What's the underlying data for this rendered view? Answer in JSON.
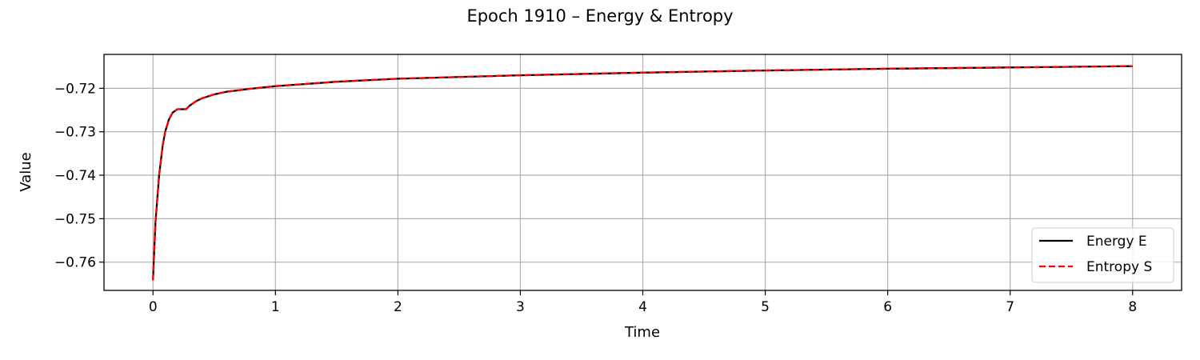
{
  "chart_data": {
    "type": "line",
    "title": "Epoch 1910 – Energy & Entropy",
    "xlabel": "Time",
    "ylabel": "Value",
    "xlim": [
      -0.4,
      8.4
    ],
    "ylim": [
      -0.7665,
      -0.7122
    ],
    "xticks": [
      0,
      1,
      2,
      3,
      4,
      5,
      6,
      7,
      8
    ],
    "xtick_labels": [
      "0",
      "1",
      "2",
      "3",
      "4",
      "5",
      "6",
      "7",
      "8"
    ],
    "yticks": [
      -0.76,
      -0.75,
      -0.74,
      -0.73,
      -0.72
    ],
    "ytick_labels": [
      "−0.76",
      "−0.75",
      "−0.74",
      "−0.73",
      "−0.72"
    ],
    "grid": true,
    "legend_position": "lower-right",
    "series": [
      {
        "name": "Energy E",
        "color": "#000000",
        "style": "solid",
        "x": [
          0,
          0.02,
          0.05,
          0.08,
          0.1,
          0.13,
          0.16,
          0.2,
          0.24,
          0.27,
          0.3,
          0.35,
          0.4,
          0.5,
          0.6,
          0.8,
          1.0,
          1.5,
          2.0,
          3.0,
          4.0,
          5.0,
          6.0,
          7.0,
          8.0
        ],
        "y": [
          -0.7642,
          -0.751,
          -0.74,
          -0.733,
          -0.73,
          -0.7272,
          -0.7256,
          -0.7248,
          -0.7248,
          -0.7248,
          -0.724,
          -0.723,
          -0.7223,
          -0.7214,
          -0.7208,
          -0.7201,
          -0.7195,
          -0.7185,
          -0.7178,
          -0.717,
          -0.7164,
          -0.7159,
          -0.7155,
          -0.7152,
          -0.7149
        ]
      },
      {
        "name": "Entropy S",
        "color": "#ff0000",
        "style": "dashed",
        "x": [
          0,
          0.02,
          0.05,
          0.08,
          0.1,
          0.13,
          0.16,
          0.2,
          0.24,
          0.27,
          0.3,
          0.35,
          0.4,
          0.5,
          0.6,
          0.8,
          1.0,
          1.5,
          2.0,
          3.0,
          4.0,
          5.0,
          6.0,
          7.0,
          8.0
        ],
        "y": [
          -0.7642,
          -0.751,
          -0.74,
          -0.733,
          -0.73,
          -0.7272,
          -0.7256,
          -0.7248,
          -0.7248,
          -0.7248,
          -0.724,
          -0.723,
          -0.7223,
          -0.7214,
          -0.7208,
          -0.7201,
          -0.7195,
          -0.7185,
          -0.7178,
          -0.717,
          -0.7164,
          -0.7159,
          -0.7155,
          -0.7152,
          -0.7149
        ]
      }
    ]
  }
}
